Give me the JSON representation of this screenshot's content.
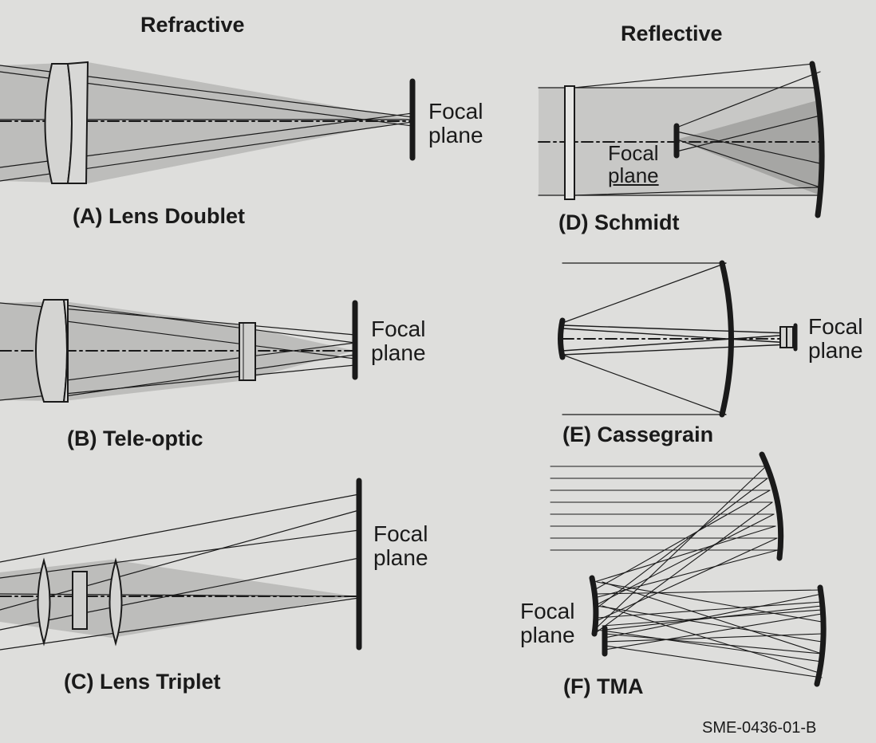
{
  "headers": {
    "refractive": "Refractive",
    "reflective": "Reflective"
  },
  "captions": {
    "a": "(A) Lens Doublet",
    "b": "(B) Tele-optic",
    "c": "(C) Lens Triplet",
    "d": "(D) Schmidt",
    "e": "(E) Cassegrain",
    "f": "(F) TMA"
  },
  "focal_labels": {
    "a": [
      "Focal",
      "plane"
    ],
    "b": [
      "Focal",
      "plane"
    ],
    "c": [
      "Focal",
      "plane"
    ],
    "d": [
      "Focal",
      "plane"
    ],
    "e": [
      "Focal",
      "plane"
    ],
    "f": [
      "Focal",
      "plane"
    ]
  },
  "figure_id": "SME-0436-01-B",
  "colors": {
    "background": "#dededc",
    "ink": "#1a1a1a",
    "beam": "#bdbdbb",
    "beam_dark": "#a6a6a4"
  }
}
